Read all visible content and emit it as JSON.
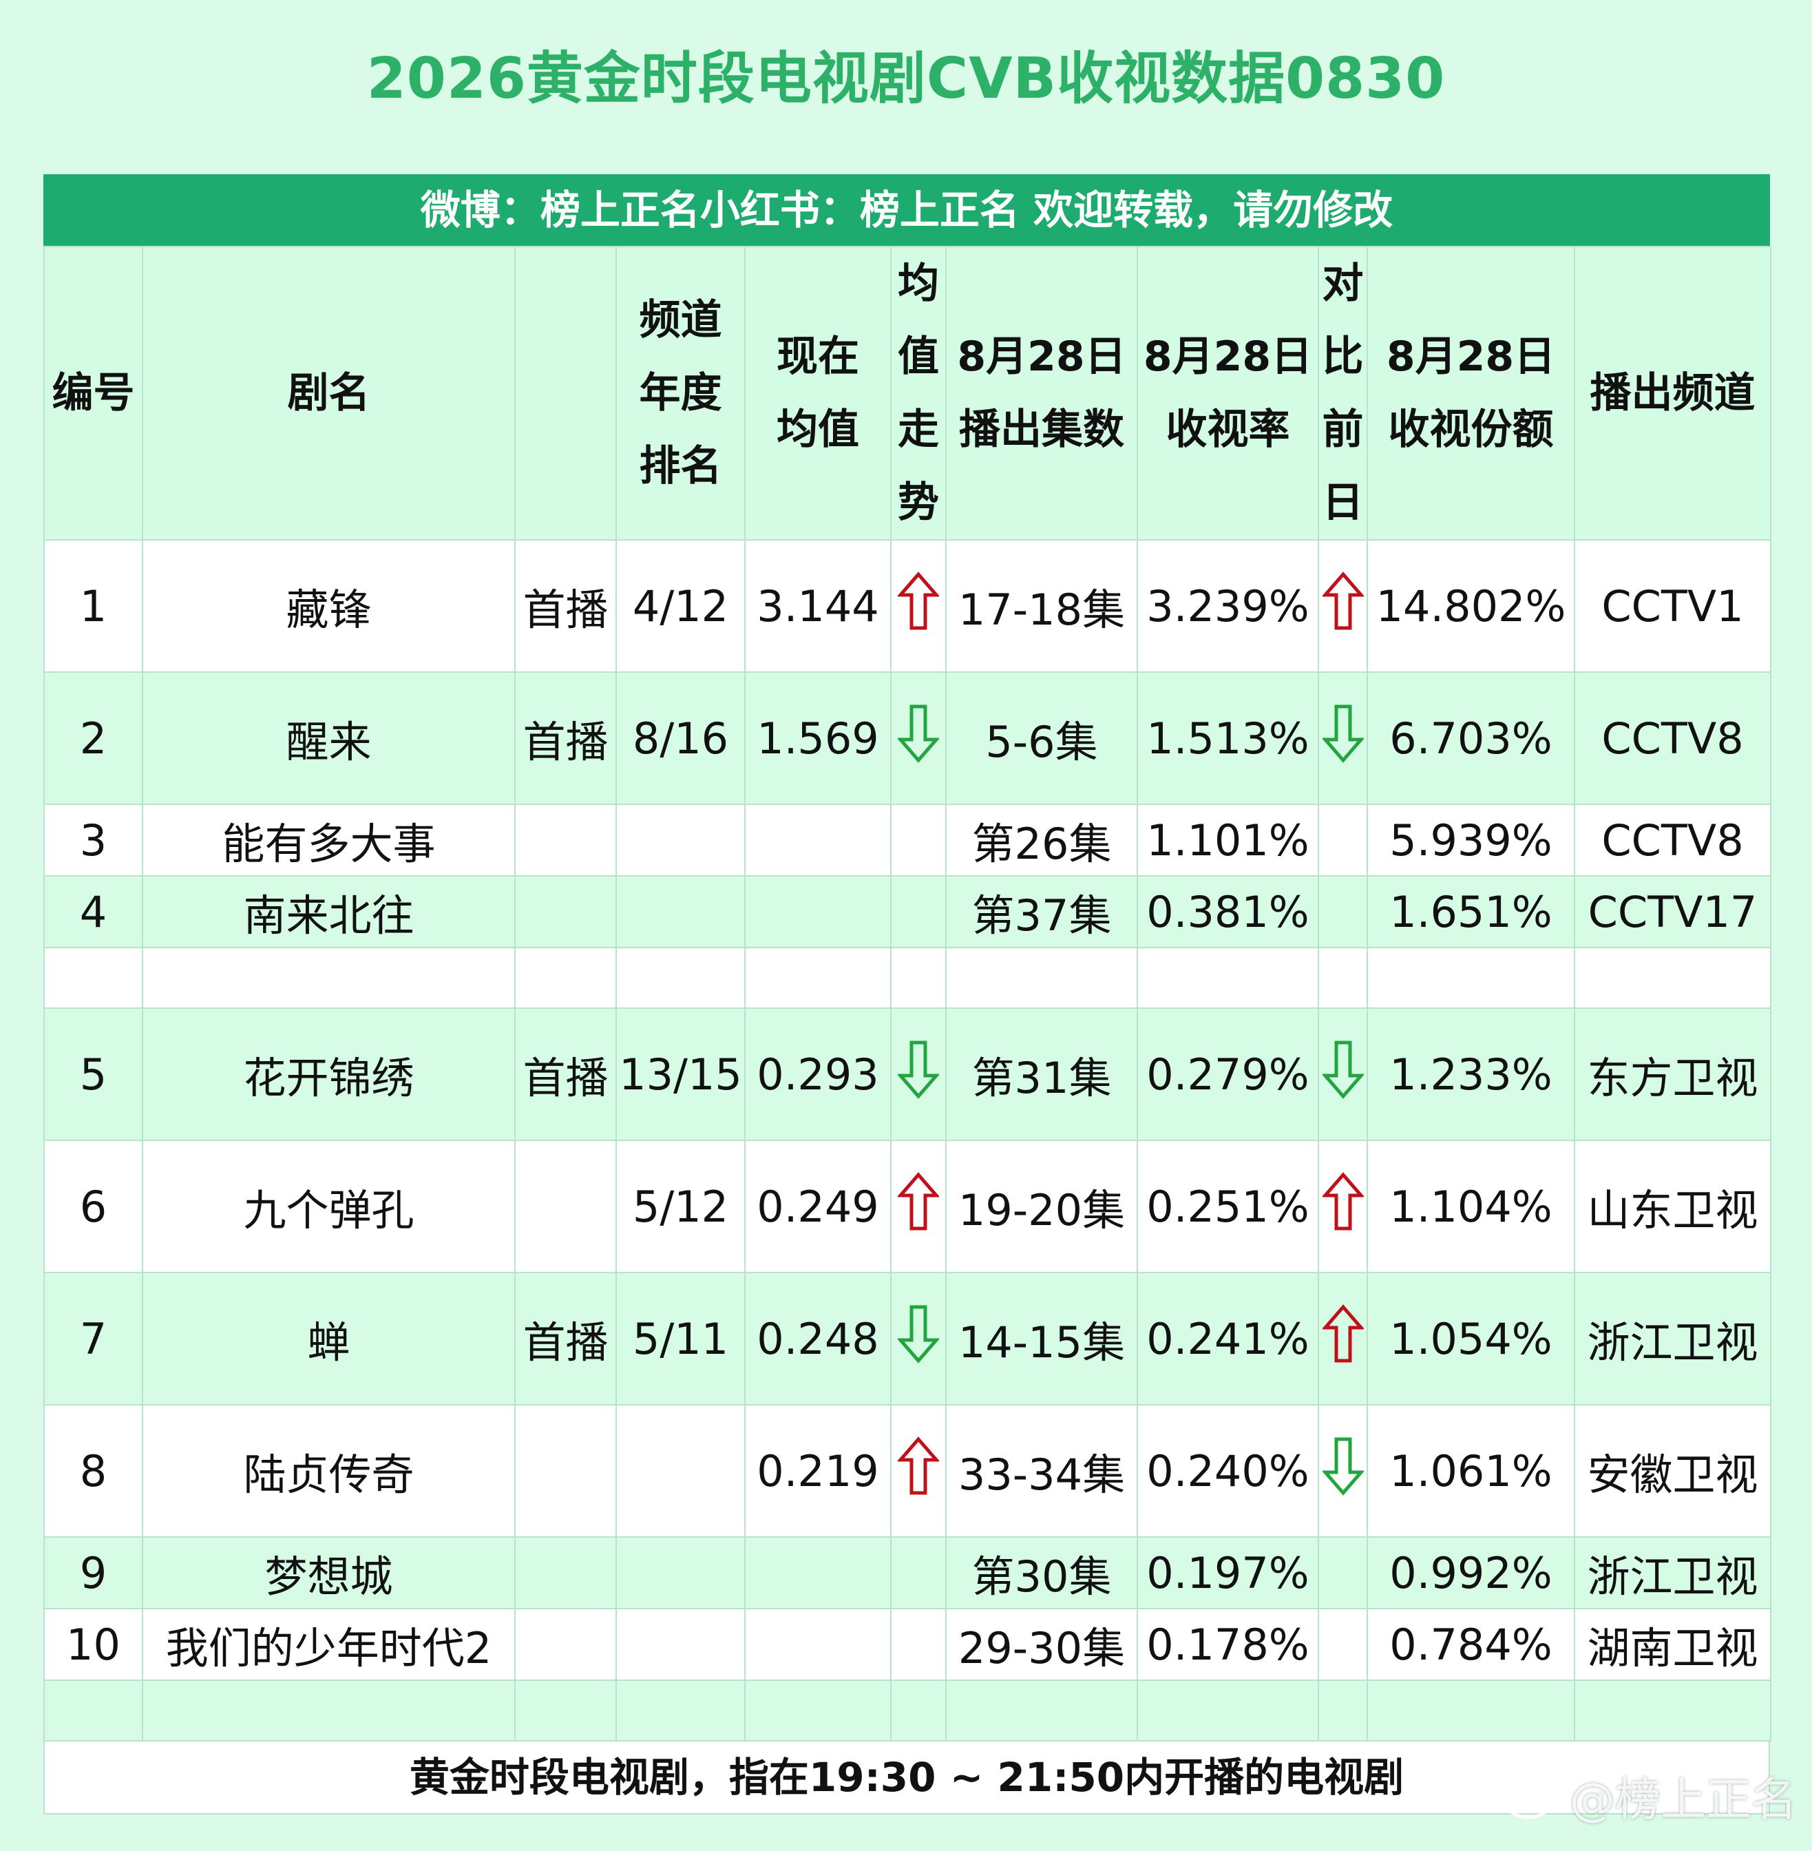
{
  "title": "2026黄金时段电视剧CVB收视数据0830",
  "banner": "微博：榜上正名小红书：榜上正名 欢迎转载，请勿修改",
  "headers": {
    "rank": "编号",
    "name": "剧名",
    "premiere": "",
    "channel_rank": "频道年度排名",
    "avg": "现在均值",
    "avg_trend": "均值走势",
    "episodes": "8月28日播出集数",
    "rating": "8月28日收视率",
    "compare": "对比前日",
    "share": "8月28日收视份额",
    "channel": "播出频道"
  },
  "rows": [
    {
      "no": "1",
      "name": "藏锋",
      "premiere": "首播",
      "channel_rank": "4/12",
      "avg": "3.144",
      "avg_trend": "up",
      "episodes": "17-18集",
      "rating": "3.239%",
      "compare": "up",
      "share": "14.802%",
      "channel": "CCTV1"
    },
    {
      "no": "2",
      "name": "醒来",
      "premiere": "首播",
      "channel_rank": "8/16",
      "avg": "1.569",
      "avg_trend": "down",
      "episodes": "5-6集",
      "rating": "1.513%",
      "compare": "down",
      "share": "6.703%",
      "channel": "CCTV8"
    },
    {
      "no": "3",
      "name": "能有多大事",
      "premiere": "",
      "channel_rank": "",
      "avg": "",
      "avg_trend": "",
      "episodes": "第26集",
      "rating": "1.101%",
      "compare": "",
      "share": "5.939%",
      "channel": "CCTV8"
    },
    {
      "no": "4",
      "name": "南来北往",
      "premiere": "",
      "channel_rank": "",
      "avg": "",
      "avg_trend": "",
      "episodes": "第37集",
      "rating": "0.381%",
      "compare": "",
      "share": "1.651%",
      "channel": "CCTV17"
    },
    {
      "no": "5",
      "name": "花开锦绣",
      "premiere": "首播",
      "channel_rank": "13/15",
      "avg": "0.293",
      "avg_trend": "down",
      "episodes": "第31集",
      "rating": "0.279%",
      "compare": "down",
      "share": "1.233%",
      "channel": "东方卫视"
    },
    {
      "no": "6",
      "name": "九个弹孔",
      "premiere": "",
      "channel_rank": "5/12",
      "avg": "0.249",
      "avg_trend": "up",
      "episodes": "19-20集",
      "rating": "0.251%",
      "compare": "up",
      "share": "1.104%",
      "channel": "山东卫视"
    },
    {
      "no": "7",
      "name": "蝉",
      "premiere": "首播",
      "channel_rank": "5/11",
      "avg": "0.248",
      "avg_trend": "down",
      "episodes": "14-15集",
      "rating": "0.241%",
      "compare": "up",
      "share": "1.054%",
      "channel": "浙江卫视"
    },
    {
      "no": "8",
      "name": "陆贞传奇",
      "premiere": "",
      "channel_rank": "",
      "avg": "0.219",
      "avg_trend": "up",
      "episodes": "33-34集",
      "rating": "0.240%",
      "compare": "down",
      "share": "1.061%",
      "channel": "安徽卫视"
    },
    {
      "no": "9",
      "name": "梦想城",
      "premiere": "",
      "channel_rank": "",
      "avg": "",
      "avg_trend": "",
      "episodes": "第30集",
      "rating": "0.197%",
      "compare": "",
      "share": "0.992%",
      "channel": "浙江卫视"
    },
    {
      "no": "10",
      "name": "我们的少年时代2",
      "premiere": "",
      "channel_rank": "",
      "avg": "",
      "avg_trend": "",
      "episodes": "29-30集",
      "rating": "0.178%",
      "compare": "",
      "share": "0.784%",
      "channel": "湖南卫视"
    }
  ],
  "footer": "黄金时段电视剧，指在19:30 ~ 21:50内开播的电视剧",
  "watermark": "@榜上正名",
  "colors": {
    "background": "#d9fbe7",
    "title": "#2db067",
    "banner": "#1eab6f",
    "up_arrow": "#c0111a",
    "down_arrow": "#22a53f"
  }
}
